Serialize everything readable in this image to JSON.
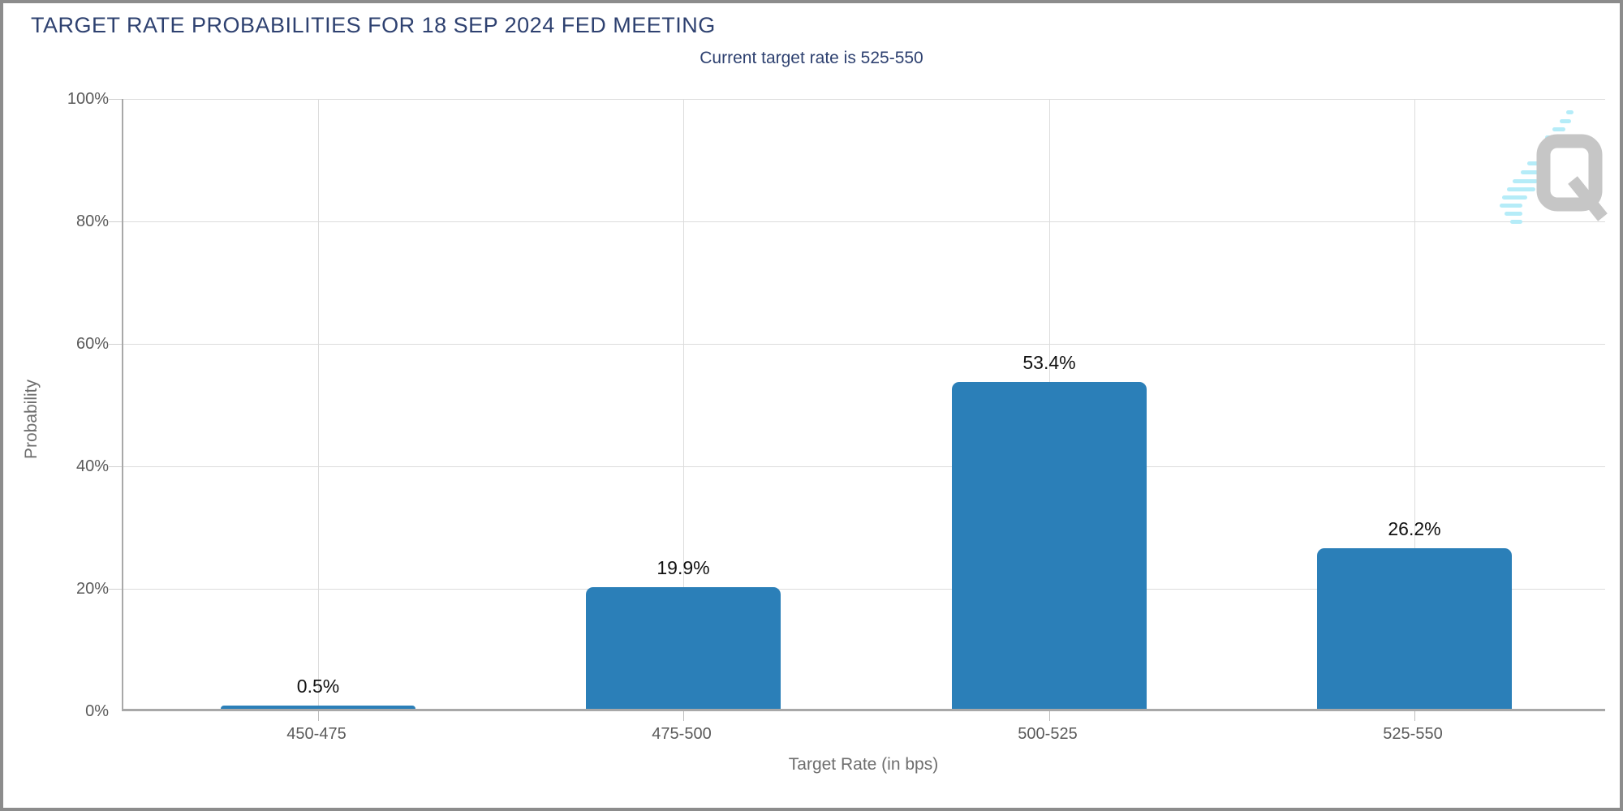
{
  "header": {
    "title": "TARGET RATE PROBABILITIES FOR 18 SEP 2024 FED MEETING",
    "subtitle": "Current target rate is 525-550"
  },
  "chart_data": {
    "type": "bar",
    "title": "TARGET RATE PROBABILITIES FOR 18 SEP 2024 FED MEETING",
    "subtitle": "Current target rate is 525-550",
    "categories": [
      "450-475",
      "475-500",
      "500-525",
      "525-550"
    ],
    "values": [
      0.5,
      19.9,
      53.4,
      26.2
    ],
    "value_labels": [
      "0.5%",
      "19.9%",
      "53.4%",
      "26.2%"
    ],
    "xlabel": "Target Rate (in bps)",
    "ylabel": "Probability",
    "ylim": [
      0,
      100
    ],
    "yticks": [
      "0%",
      "20%",
      "40%",
      "60%",
      "80%",
      "100%"
    ],
    "grid": true,
    "legend": "none",
    "bar_color": "#2b7fb8"
  },
  "colors": {
    "title_navy": "#2e4170",
    "bar_blue": "#2b7fb8",
    "axis_gray": "#a8a8a8",
    "grid_gray": "#dcdcdc",
    "tick_text_gray": "#5a5a5a",
    "frame_border": "#8c8c8c",
    "watermark_gray": "#c6c6c6",
    "watermark_cyan": "#b5ecf8"
  },
  "watermark": {
    "name": "q-logo"
  }
}
